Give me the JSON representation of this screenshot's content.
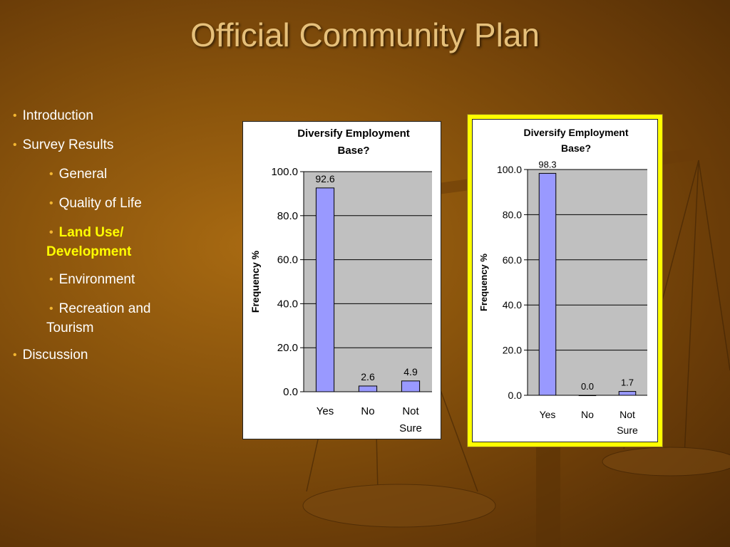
{
  "slide": {
    "title": "Official Community Plan"
  },
  "outline": {
    "items": [
      {
        "text": "Introduction",
        "level": 0
      },
      {
        "text": "Survey Results",
        "level": 0
      },
      {
        "text": "General",
        "level": 1
      },
      {
        "text": "Quality of Life",
        "level": 1
      },
      {
        "text": "Land Use/",
        "text2": "Development",
        "level": 1,
        "active": true
      },
      {
        "text": "Environment",
        "level": 1
      },
      {
        "text": "Recreation and",
        "text2": "Tourism",
        "level": 1
      },
      {
        "text": "Discussion",
        "level": 0
      }
    ]
  },
  "colors": {
    "bullet": "#f2b531",
    "active": "#ffff00",
    "bar": "#9999ff",
    "plot_bg": "#c0c0c0",
    "highlight": "#ffff00"
  },
  "chart_data": [
    {
      "type": "bar",
      "title_lines": [
        "Diversify Employment",
        "Base?"
      ],
      "categories": [
        [
          "Yes"
        ],
        [
          "No"
        ],
        [
          "Not",
          "Sure"
        ]
      ],
      "values": [
        92.6,
        2.6,
        4.9
      ],
      "value_labels": [
        "92.6",
        "2.6",
        "4.9"
      ],
      "ylabel": "Frequency %",
      "ylim": [
        0,
        100
      ],
      "yticks": [
        "0.0",
        "20.0",
        "40.0",
        "60.0",
        "80.0",
        "100.0"
      ],
      "grid": true
    },
    {
      "type": "bar",
      "title_lines": [
        "Diversify Employment",
        "Base?"
      ],
      "categories": [
        [
          "Yes"
        ],
        [
          "No"
        ],
        [
          "Not",
          "Sure"
        ]
      ],
      "values": [
        98.3,
        0.0,
        1.7
      ],
      "value_labels": [
        "98.3",
        "0.0",
        "1.7"
      ],
      "ylabel": "Frequency %",
      "ylim": [
        0,
        100
      ],
      "yticks": [
        "0.0",
        "20.0",
        "40.0",
        "60.0",
        "80.0",
        "100.0"
      ],
      "grid": true,
      "highlighted": true
    }
  ]
}
